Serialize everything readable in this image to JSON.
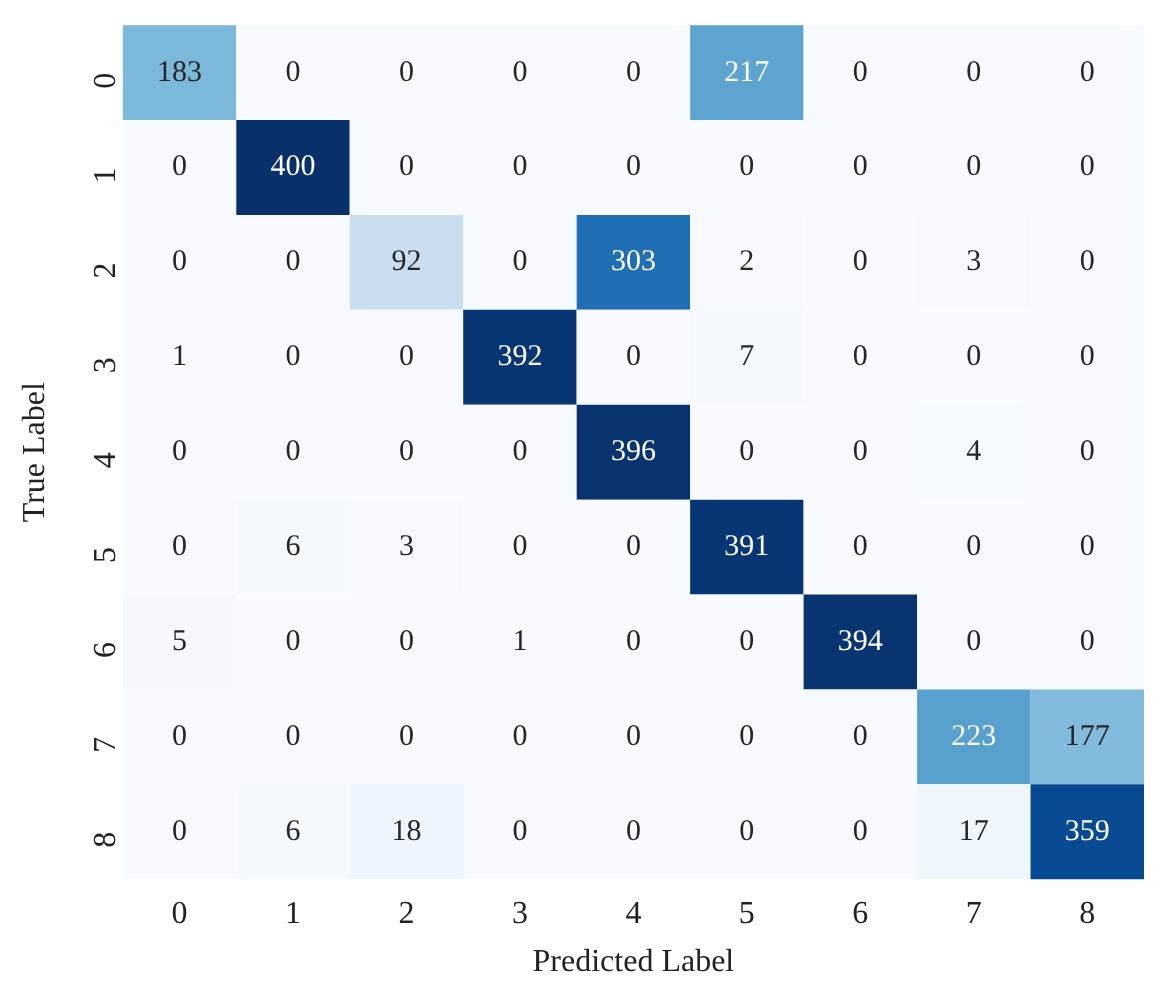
{
  "chart_data": {
    "type": "heatmap",
    "xlabel": "Predicted Label",
    "ylabel": "True Label",
    "categories": [
      "0",
      "1",
      "2",
      "3",
      "4",
      "5",
      "6",
      "7",
      "8"
    ],
    "y_categories": [
      "0",
      "1",
      "2",
      "3",
      "4",
      "5",
      "6",
      "7",
      "8"
    ],
    "cells": [
      [
        183,
        0,
        0,
        0,
        0,
        217,
        0,
        0,
        0
      ],
      [
        0,
        400,
        0,
        0,
        0,
        0,
        0,
        0,
        0
      ],
      [
        0,
        0,
        92,
        0,
        303,
        2,
        0,
        3,
        0
      ],
      [
        1,
        0,
        0,
        392,
        0,
        7,
        0,
        0,
        0
      ],
      [
        0,
        0,
        0,
        0,
        396,
        0,
        0,
        4,
        0
      ],
      [
        0,
        6,
        3,
        0,
        0,
        391,
        0,
        0,
        0
      ],
      [
        5,
        0,
        0,
        1,
        0,
        0,
        394,
        0,
        0
      ],
      [
        0,
        0,
        0,
        0,
        0,
        0,
        0,
        223,
        177
      ],
      [
        0,
        6,
        18,
        0,
        0,
        0,
        0,
        17,
        359
      ]
    ],
    "data_labels": true,
    "legend": false,
    "grid": false
  }
}
